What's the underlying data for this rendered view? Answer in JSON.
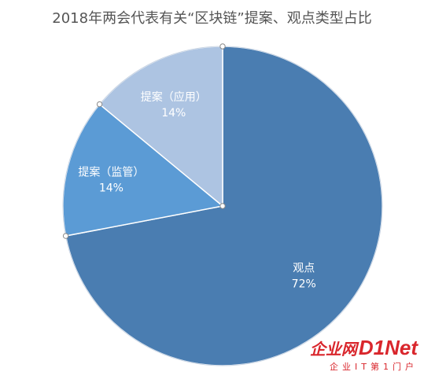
{
  "chart_data": {
    "type": "pie",
    "title": "2018年两会代表有关“区块链”提案、观点类型占比",
    "slices": [
      {
        "label": "观点",
        "percent_label": "72%",
        "value": 72,
        "color": "#4a7db1"
      },
      {
        "label": "提案（监管）",
        "percent_label": "14%",
        "value": 14,
        "color": "#5b9bd5"
      },
      {
        "label": "提案（应用）",
        "percent_label": "14%",
        "value": 14,
        "color": "#adc4e2"
      }
    ],
    "start": "12 o'clock",
    "direction": "clockwise",
    "legend": "none"
  },
  "watermark": {
    "cn": "企业网",
    "en": "D1Net",
    "sub": "企业IT第1门户"
  }
}
